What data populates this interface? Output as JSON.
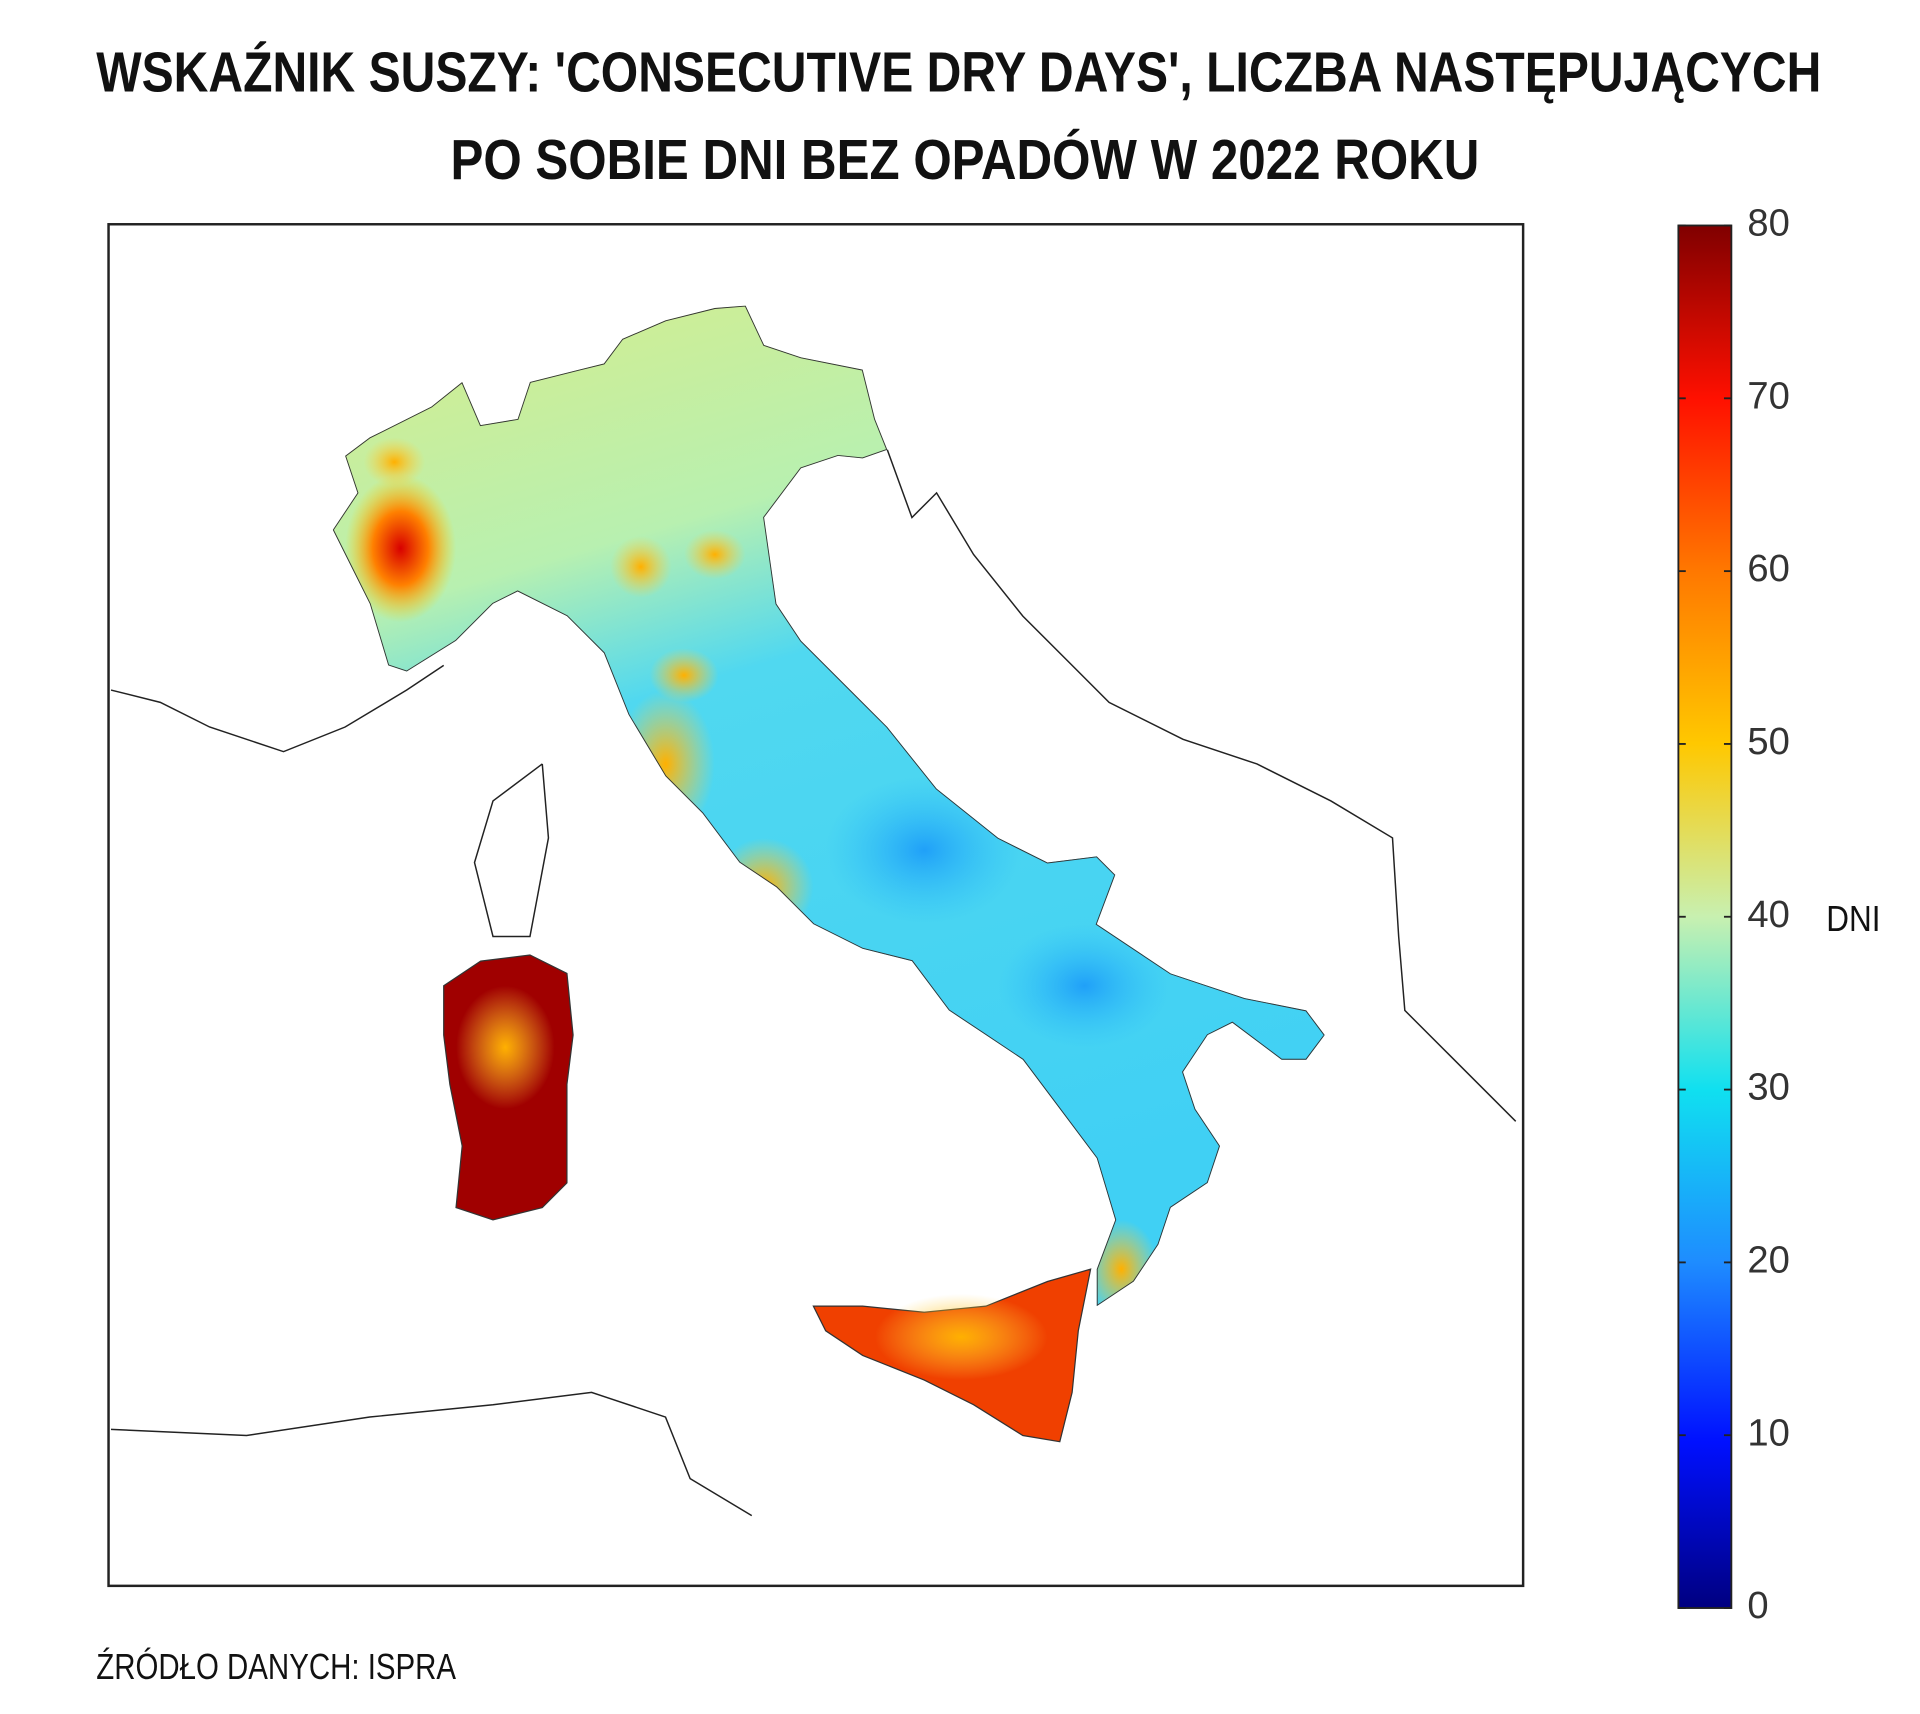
{
  "title_lines": [
    "WSKAŹNIK SUSZY: 'CONSECUTIVE DRY DAYS', LICZBA NASTĘPUJĄCYCH",
    "PO SOBIE DNI BEZ OPADÓW W 2022 ROKU"
  ],
  "source": "ŹRÓDŁO DANYCH: ISPRA",
  "colorbar": {
    "label": "DNI",
    "lim": [
      0,
      80
    ],
    "ticks": [
      0,
      10,
      20,
      30,
      40,
      50,
      60,
      70,
      80
    ]
  }
}
